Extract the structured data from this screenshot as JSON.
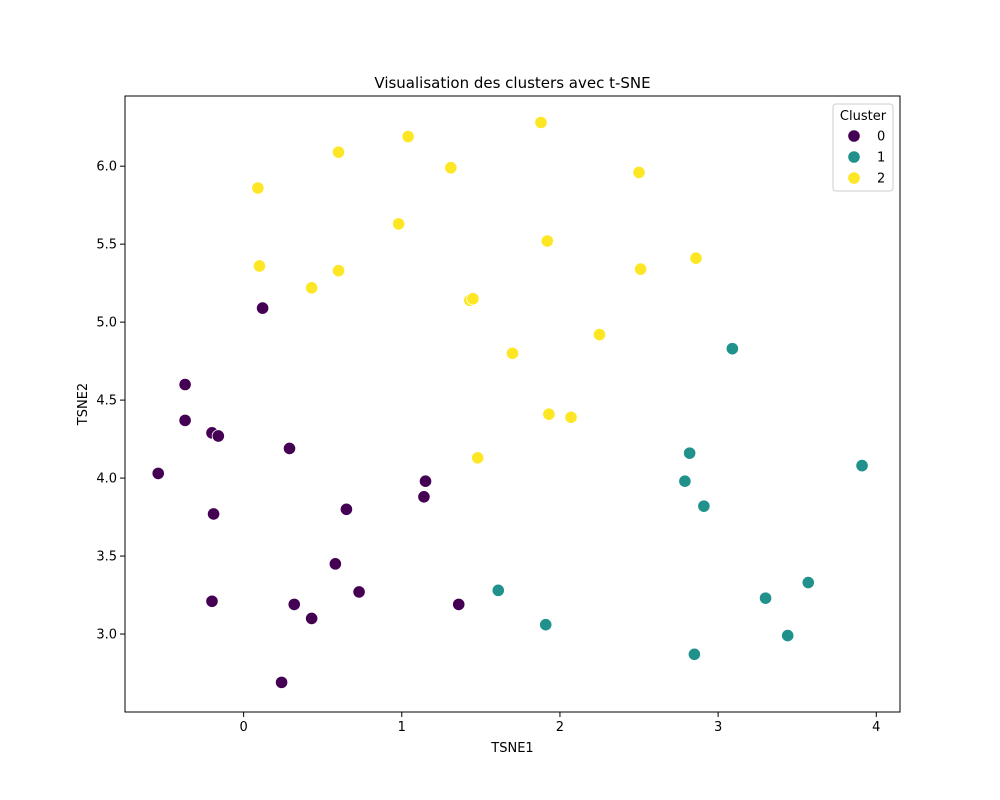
{
  "chart_data": {
    "type": "scatter",
    "title": "Visualisation des clusters avec t-SNE",
    "xlabel": "TSNE1",
    "ylabel": "TSNE2",
    "xlim": [
      -0.75,
      4.15
    ],
    "ylim": [
      2.5,
      6.45
    ],
    "xticks": [
      0,
      1,
      2,
      3,
      4
    ],
    "yticks": [
      3.0,
      3.5,
      4.0,
      4.5,
      5.0,
      5.5,
      6.0
    ],
    "grid": false,
    "legend": {
      "title": "Cluster",
      "position": "top-right"
    },
    "series": [
      {
        "name": "0",
        "color": "#440154",
        "points": [
          [
            0.12,
            5.09
          ],
          [
            -0.37,
            4.6
          ],
          [
            -0.37,
            4.37
          ],
          [
            -0.2,
            4.29
          ],
          [
            -0.16,
            4.27
          ],
          [
            0.29,
            4.19
          ],
          [
            -0.54,
            4.03
          ],
          [
            1.15,
            3.98
          ],
          [
            1.14,
            3.88
          ],
          [
            -0.19,
            3.77
          ],
          [
            0.65,
            3.8
          ],
          [
            0.58,
            3.45
          ],
          [
            0.73,
            3.27
          ],
          [
            -0.2,
            3.21
          ],
          [
            0.32,
            3.19
          ],
          [
            0.43,
            3.1
          ],
          [
            1.36,
            3.19
          ],
          [
            0.24,
            2.69
          ]
        ]
      },
      {
        "name": "1",
        "color": "#21918c",
        "points": [
          [
            3.09,
            4.83
          ],
          [
            2.82,
            4.16
          ],
          [
            3.91,
            4.08
          ],
          [
            2.79,
            3.98
          ],
          [
            2.91,
            3.82
          ],
          [
            3.57,
            3.33
          ],
          [
            1.61,
            3.28
          ],
          [
            3.3,
            3.23
          ],
          [
            1.91,
            3.06
          ],
          [
            3.44,
            2.99
          ],
          [
            2.85,
            2.87
          ]
        ]
      },
      {
        "name": "2",
        "color": "#fde725",
        "points": [
          [
            1.88,
            6.28
          ],
          [
            1.04,
            6.19
          ],
          [
            0.6,
            6.09
          ],
          [
            1.31,
            5.99
          ],
          [
            2.5,
            5.96
          ],
          [
            0.09,
            5.86
          ],
          [
            0.98,
            5.63
          ],
          [
            1.92,
            5.52
          ],
          [
            0.1,
            5.36
          ],
          [
            2.51,
            5.34
          ],
          [
            0.6,
            5.33
          ],
          [
            2.86,
            5.41
          ],
          [
            0.43,
            5.22
          ],
          [
            1.43,
            5.14
          ],
          [
            1.45,
            5.15
          ],
          [
            2.25,
            4.92
          ],
          [
            1.7,
            4.8
          ],
          [
            1.93,
            4.41
          ],
          [
            2.07,
            4.39
          ],
          [
            1.48,
            4.13
          ]
        ]
      }
    ]
  }
}
